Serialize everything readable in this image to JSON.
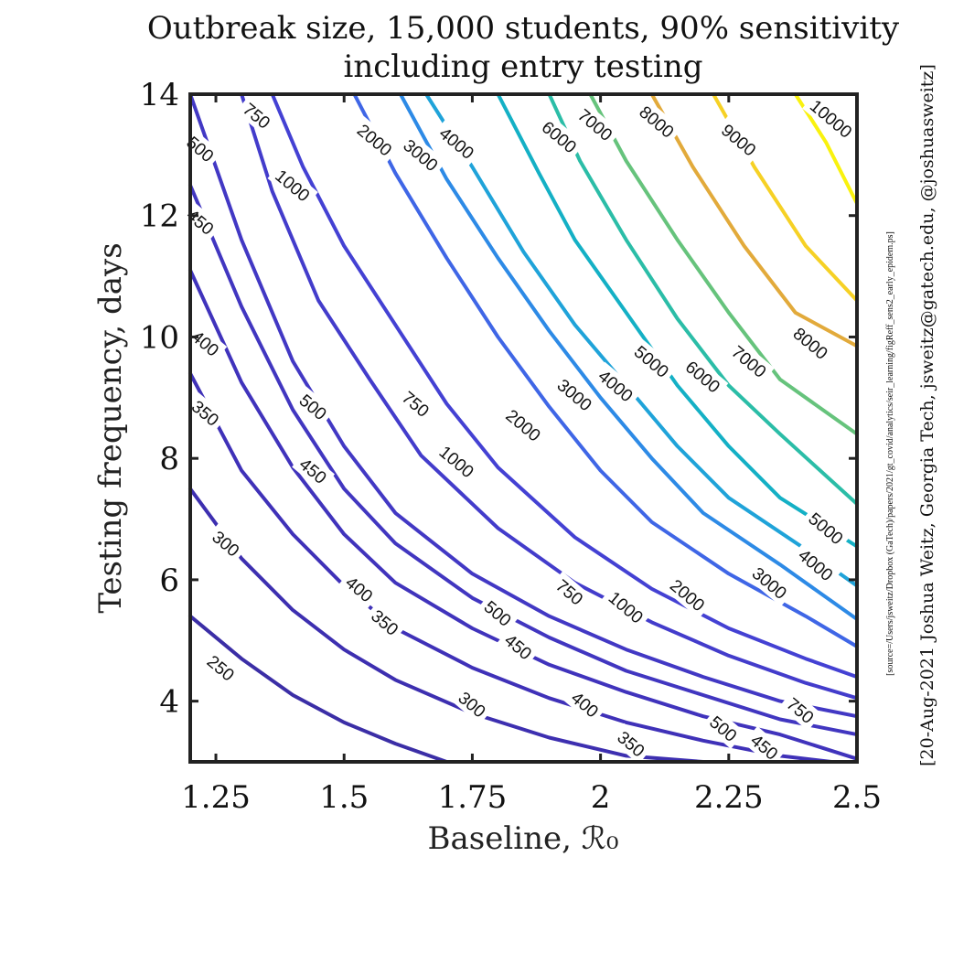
{
  "chart_data": {
    "type": "contour",
    "title": [
      "Outbreak size, 15,000 students, 90% sensitivity",
      "including entry testing"
    ],
    "xlabel": "Baseline, ℛ₀",
    "ylabel": "Testing frequency, days",
    "xlim": [
      1.2,
      2.5
    ],
    "ylim": [
      3,
      14
    ],
    "xticks": [
      1.25,
      1.5,
      1.75,
      2,
      2.25,
      2.5
    ],
    "xtick_labels": [
      "1.25",
      "1.5",
      "1.75",
      "2",
      "2.25",
      "2.5"
    ],
    "yticks": [
      4,
      6,
      8,
      10,
      12,
      14
    ],
    "ytick_labels": [
      "4",
      "6",
      "8",
      "10",
      "12",
      "14"
    ],
    "colormap": "parula",
    "levels": [
      {
        "level": 250,
        "color": "#3b2ea6",
        "points": [
          [
            1.2,
            5.4
          ],
          [
            1.3,
            4.7
          ],
          [
            1.4,
            4.1
          ],
          [
            1.5,
            3.65
          ],
          [
            1.6,
            3.3
          ],
          [
            1.7,
            3.0
          ]
        ],
        "labels": [
          {
            "x": 1.26,
            "y": 4.55,
            "text": "250"
          }
        ]
      },
      {
        "level": 300,
        "color": "#3d2fb0",
        "points": [
          [
            1.2,
            7.5
          ],
          [
            1.3,
            6.35
          ],
          [
            1.4,
            5.5
          ],
          [
            1.5,
            4.85
          ],
          [
            1.6,
            4.35
          ],
          [
            1.75,
            3.8
          ],
          [
            1.9,
            3.4
          ],
          [
            2.05,
            3.1
          ],
          [
            2.2,
            3.0
          ]
        ],
        "labels": [
          {
            "x": 1.27,
            "y": 6.6,
            "text": "300"
          },
          {
            "x": 1.75,
            "y": 3.95,
            "text": "300"
          }
        ]
      },
      {
        "level": 350,
        "color": "#3f31b8",
        "points": [
          [
            1.2,
            9.4
          ],
          [
            1.3,
            7.8
          ],
          [
            1.4,
            6.75
          ],
          [
            1.5,
            5.9
          ],
          [
            1.6,
            5.2
          ],
          [
            1.75,
            4.55
          ],
          [
            1.9,
            4.05
          ],
          [
            2.05,
            3.65
          ],
          [
            2.2,
            3.35
          ],
          [
            2.35,
            3.1
          ],
          [
            2.45,
            3.0
          ]
        ],
        "labels": [
          {
            "x": 1.23,
            "y": 8.75,
            "text": "350"
          },
          {
            "x": 1.58,
            "y": 5.3,
            "text": "350"
          },
          {
            "x": 2.06,
            "y": 3.3,
            "text": "350"
          }
        ]
      },
      {
        "level": 400,
        "color": "#4033bc",
        "points": [
          [
            1.2,
            11.1
          ],
          [
            1.3,
            9.25
          ],
          [
            1.4,
            7.85
          ],
          [
            1.5,
            6.75
          ],
          [
            1.6,
            5.95
          ],
          [
            1.75,
            5.2
          ],
          [
            1.9,
            4.6
          ],
          [
            2.05,
            4.15
          ],
          [
            2.2,
            3.75
          ],
          [
            2.35,
            3.45
          ],
          [
            2.5,
            3.05
          ]
        ],
        "labels": [
          {
            "x": 1.23,
            "y": 9.9,
            "text": "400"
          },
          {
            "x": 1.53,
            "y": 5.85,
            "text": "400"
          },
          {
            "x": 1.97,
            "y": 3.95,
            "text": "400"
          }
        ]
      },
      {
        "level": 450,
        "color": "#4136c0",
        "points": [
          [
            1.2,
            12.5
          ],
          [
            1.3,
            10.5
          ],
          [
            1.4,
            8.8
          ],
          [
            1.5,
            7.5
          ],
          [
            1.6,
            6.6
          ],
          [
            1.75,
            5.7
          ],
          [
            1.9,
            5.05
          ],
          [
            2.05,
            4.5
          ],
          [
            2.2,
            4.1
          ],
          [
            2.35,
            3.7
          ],
          [
            2.5,
            3.45
          ]
        ],
        "labels": [
          {
            "x": 1.22,
            "y": 11.9,
            "text": "450"
          },
          {
            "x": 1.44,
            "y": 7.8,
            "text": "450"
          },
          {
            "x": 1.84,
            "y": 4.9,
            "text": "450"
          },
          {
            "x": 2.32,
            "y": 3.25,
            "text": "450"
          }
        ]
      },
      {
        "level": 500,
        "color": "#4238c4",
        "points": [
          [
            1.2,
            14.0
          ],
          [
            1.3,
            11.6
          ],
          [
            1.4,
            9.6
          ],
          [
            1.5,
            8.2
          ],
          [
            1.6,
            7.1
          ],
          [
            1.75,
            6.1
          ],
          [
            1.9,
            5.4
          ],
          [
            2.05,
            4.85
          ],
          [
            2.2,
            4.4
          ],
          [
            2.35,
            4.0
          ],
          [
            2.5,
            3.75
          ]
        ],
        "labels": [
          {
            "x": 1.22,
            "y": 13.1,
            "text": "500"
          },
          {
            "x": 1.44,
            "y": 8.85,
            "text": "500"
          },
          {
            "x": 1.8,
            "y": 5.45,
            "text": "500"
          },
          {
            "x": 2.24,
            "y": 3.55,
            "text": "500"
          }
        ]
      },
      {
        "level": 750,
        "color": "#433ccb",
        "points": [
          [
            1.3,
            14.0
          ],
          [
            1.36,
            12.4
          ],
          [
            1.45,
            10.6
          ],
          [
            1.55,
            9.3
          ],
          [
            1.65,
            8.05
          ],
          [
            1.8,
            6.85
          ],
          [
            1.95,
            5.95
          ],
          [
            2.1,
            5.3
          ],
          [
            2.25,
            4.75
          ],
          [
            2.4,
            4.3
          ],
          [
            2.5,
            4.05
          ]
        ],
        "labels": [
          {
            "x": 1.33,
            "y": 13.65,
            "text": "750"
          },
          {
            "x": 1.64,
            "y": 8.9,
            "text": "750"
          },
          {
            "x": 1.94,
            "y": 5.8,
            "text": "750"
          },
          {
            "x": 2.39,
            "y": 3.85,
            "text": "750"
          }
        ]
      },
      {
        "level": 1000,
        "color": "#4441d3",
        "points": [
          [
            1.36,
            14.0
          ],
          [
            1.42,
            12.8
          ],
          [
            1.5,
            11.5
          ],
          [
            1.6,
            10.2
          ],
          [
            1.7,
            8.9
          ],
          [
            1.8,
            7.85
          ],
          [
            1.95,
            6.7
          ],
          [
            2.1,
            5.85
          ],
          [
            2.25,
            5.2
          ],
          [
            2.4,
            4.7
          ],
          [
            2.5,
            4.4
          ]
        ],
        "labels": [
          {
            "x": 1.4,
            "y": 12.5,
            "text": "1000"
          },
          {
            "x": 1.72,
            "y": 7.95,
            "text": "1000"
          },
          {
            "x": 2.05,
            "y": 5.55,
            "text": "1000"
          }
        ]
      },
      {
        "level": 2000,
        "color": "#3f66e6",
        "points": [
          [
            1.52,
            14.0
          ],
          [
            1.6,
            12.7
          ],
          [
            1.7,
            11.3
          ],
          [
            1.8,
            10.0
          ],
          [
            1.9,
            8.85
          ],
          [
            2.0,
            7.8
          ],
          [
            2.1,
            6.95
          ],
          [
            2.25,
            6.1
          ],
          [
            2.4,
            5.4
          ],
          [
            2.5,
            4.9
          ]
        ],
        "labels": [
          {
            "x": 1.56,
            "y": 13.25,
            "text": "2000"
          },
          {
            "x": 1.85,
            "y": 8.55,
            "text": "2000"
          },
          {
            "x": 2.17,
            "y": 5.75,
            "text": "2000"
          }
        ]
      },
      {
        "level": 3000,
        "color": "#2d8ae6",
        "points": [
          [
            1.61,
            14.0
          ],
          [
            1.7,
            12.6
          ],
          [
            1.8,
            11.3
          ],
          [
            1.9,
            10.1
          ],
          [
            2.0,
            9.0
          ],
          [
            2.1,
            8.0
          ],
          [
            2.2,
            7.1
          ],
          [
            2.35,
            6.25
          ],
          [
            2.5,
            5.35
          ]
        ],
        "labels": [
          {
            "x": 1.65,
            "y": 13.0,
            "text": "3000"
          },
          {
            "x": 1.95,
            "y": 9.05,
            "text": "3000"
          },
          {
            "x": 2.33,
            "y": 5.95,
            "text": "3000"
          }
        ]
      },
      {
        "level": 4000,
        "color": "#1fa3d9",
        "points": [
          [
            1.66,
            14.0
          ],
          [
            1.75,
            12.8
          ],
          [
            1.85,
            11.4
          ],
          [
            1.95,
            10.2
          ],
          [
            2.05,
            9.2
          ],
          [
            2.15,
            8.2
          ],
          [
            2.25,
            7.35
          ],
          [
            2.4,
            6.5
          ],
          [
            2.5,
            5.9
          ]
        ],
        "labels": [
          {
            "x": 1.72,
            "y": 13.2,
            "text": "4000"
          },
          {
            "x": 2.03,
            "y": 9.2,
            "text": "4000"
          },
          {
            "x": 2.42,
            "y": 6.25,
            "text": "4000"
          }
        ]
      },
      {
        "level": 5000,
        "color": "#14b0c5",
        "points": [
          [
            1.8,
            14.0
          ],
          [
            1.88,
            12.7
          ],
          [
            1.95,
            11.6
          ],
          [
            2.05,
            10.4
          ],
          [
            2.15,
            9.2
          ],
          [
            2.25,
            8.2
          ],
          [
            2.35,
            7.35
          ],
          [
            2.5,
            6.55
          ]
        ],
        "labels": [
          {
            "x": 2.1,
            "y": 9.6,
            "text": "5000"
          },
          {
            "x": 2.44,
            "y": 6.85,
            "text": "5000"
          }
        ]
      },
      {
        "level": 6000,
        "color": "#2bbda7",
        "points": [
          [
            1.9,
            14.0
          ],
          [
            1.96,
            12.9
          ],
          [
            2.05,
            11.6
          ],
          [
            2.15,
            10.3
          ],
          [
            2.25,
            9.2
          ],
          [
            2.35,
            8.4
          ],
          [
            2.5,
            7.25
          ]
        ],
        "labels": [
          {
            "x": 1.92,
            "y": 13.3,
            "text": "6000"
          },
          {
            "x": 2.2,
            "y": 9.35,
            "text": "6000"
          }
        ]
      },
      {
        "level": 7000,
        "color": "#66c37c",
        "points": [
          [
            1.98,
            14.0
          ],
          [
            2.05,
            12.9
          ],
          [
            2.15,
            11.6
          ],
          [
            2.25,
            10.4
          ],
          [
            2.35,
            9.3
          ],
          [
            2.5,
            8.4
          ]
        ],
        "labels": [
          {
            "x": 1.99,
            "y": 13.5,
            "text": "7000"
          },
          {
            "x": 2.29,
            "y": 9.6,
            "text": "7000"
          }
        ]
      },
      {
        "level": 8000,
        "color": "#e2aa3b",
        "points": [
          [
            2.1,
            14.0
          ],
          [
            2.18,
            12.8
          ],
          [
            2.28,
            11.5
          ],
          [
            2.38,
            10.4
          ],
          [
            2.5,
            9.85
          ]
        ],
        "labels": [
          {
            "x": 2.11,
            "y": 13.55,
            "text": "8000"
          },
          {
            "x": 2.41,
            "y": 9.9,
            "text": "8000"
          }
        ]
      },
      {
        "level": 9000,
        "color": "#f6d125",
        "points": [
          [
            2.22,
            14.0
          ],
          [
            2.3,
            12.8
          ],
          [
            2.4,
            11.5
          ],
          [
            2.5,
            10.6
          ]
        ],
        "labels": [
          {
            "x": 2.27,
            "y": 13.25,
            "text": "9000"
          }
        ]
      },
      {
        "level": 10000,
        "color": "#f9f20e",
        "points": [
          [
            2.38,
            14.0
          ],
          [
            2.44,
            13.2
          ],
          [
            2.5,
            12.2
          ]
        ],
        "labels": [
          {
            "x": 2.45,
            "y": 13.6,
            "text": "10000"
          }
        ]
      }
    ]
  },
  "side_notes": {
    "source": "[source=/Users/jsweitz/Dropbox (GaTech)/papers/2021/gt_covid/analytics/seir_learning/figReff_sens2_early_epidem.ps]",
    "credit": "[20-Aug-2021 Joshua Weitz, Georgia Tech, jsweitz@gatech.edu, @joshuasweitz]"
  }
}
